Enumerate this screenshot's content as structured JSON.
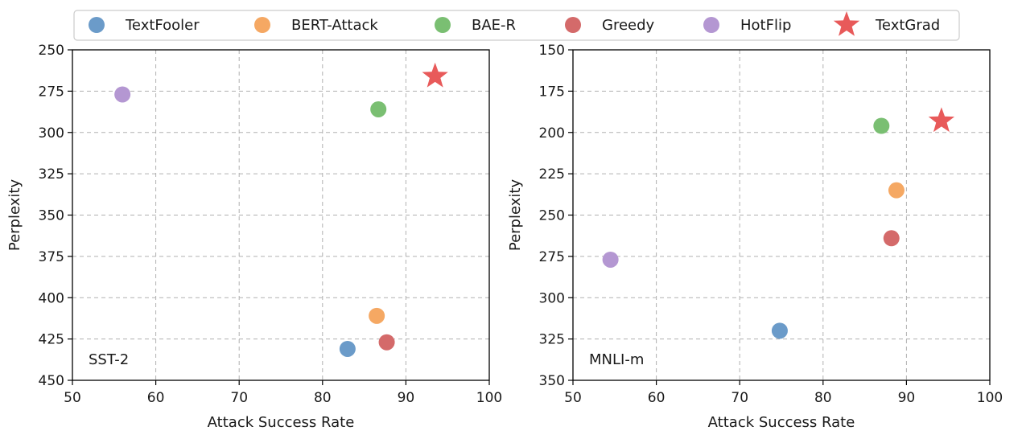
{
  "legend": {
    "items": [
      {
        "name": "TextFooler",
        "color": "#6b9bc9",
        "marker": "circle"
      },
      {
        "name": "BERT-Attack",
        "color": "#f5a863",
        "marker": "circle"
      },
      {
        "name": "BAE-R",
        "color": "#7abf72",
        "marker": "circle"
      },
      {
        "name": "Greedy",
        "color": "#d46a6a",
        "marker": "circle"
      },
      {
        "name": "HotFlip",
        "color": "#b497d2",
        "marker": "circle"
      },
      {
        "name": "TextGrad",
        "color": "#e85a5a",
        "marker": "star"
      }
    ]
  },
  "chart_data": [
    {
      "type": "scatter",
      "panel_label": "SST-2",
      "xlabel": "Attack Success Rate",
      "ylabel": "Perplexity",
      "xlim": [
        50,
        100
      ],
      "ylim": [
        250,
        450
      ],
      "y_inverted": true,
      "xticks": [
        50,
        60,
        70,
        80,
        90,
        100
      ],
      "yticks": [
        250,
        275,
        300,
        325,
        350,
        375,
        400,
        425,
        450
      ],
      "grid": true,
      "points": [
        {
          "series": "TextFooler",
          "x": 83.0,
          "y": 431
        },
        {
          "series": "BERT-Attack",
          "x": 86.5,
          "y": 411
        },
        {
          "series": "BAE-R",
          "x": 86.7,
          "y": 286
        },
        {
          "series": "Greedy",
          "x": 87.7,
          "y": 427
        },
        {
          "series": "HotFlip",
          "x": 56.0,
          "y": 277
        },
        {
          "series": "TextGrad",
          "x": 93.5,
          "y": 266
        }
      ]
    },
    {
      "type": "scatter",
      "panel_label": "MNLI-m",
      "xlabel": "Attack Success Rate",
      "ylabel": "Perplexity",
      "xlim": [
        50,
        100
      ],
      "ylim": [
        150,
        350
      ],
      "y_inverted": true,
      "xticks": [
        50,
        60,
        70,
        80,
        90,
        100
      ],
      "yticks": [
        150,
        175,
        200,
        225,
        250,
        275,
        300,
        325,
        350
      ],
      "grid": true,
      "points": [
        {
          "series": "TextFooler",
          "x": 74.8,
          "y": 320
        },
        {
          "series": "BERT-Attack",
          "x": 88.8,
          "y": 235
        },
        {
          "series": "BAE-R",
          "x": 87.0,
          "y": 196
        },
        {
          "series": "Greedy",
          "x": 88.2,
          "y": 264
        },
        {
          "series": "HotFlip",
          "x": 54.5,
          "y": 277
        },
        {
          "series": "TextGrad",
          "x": 94.2,
          "y": 193
        }
      ]
    }
  ]
}
